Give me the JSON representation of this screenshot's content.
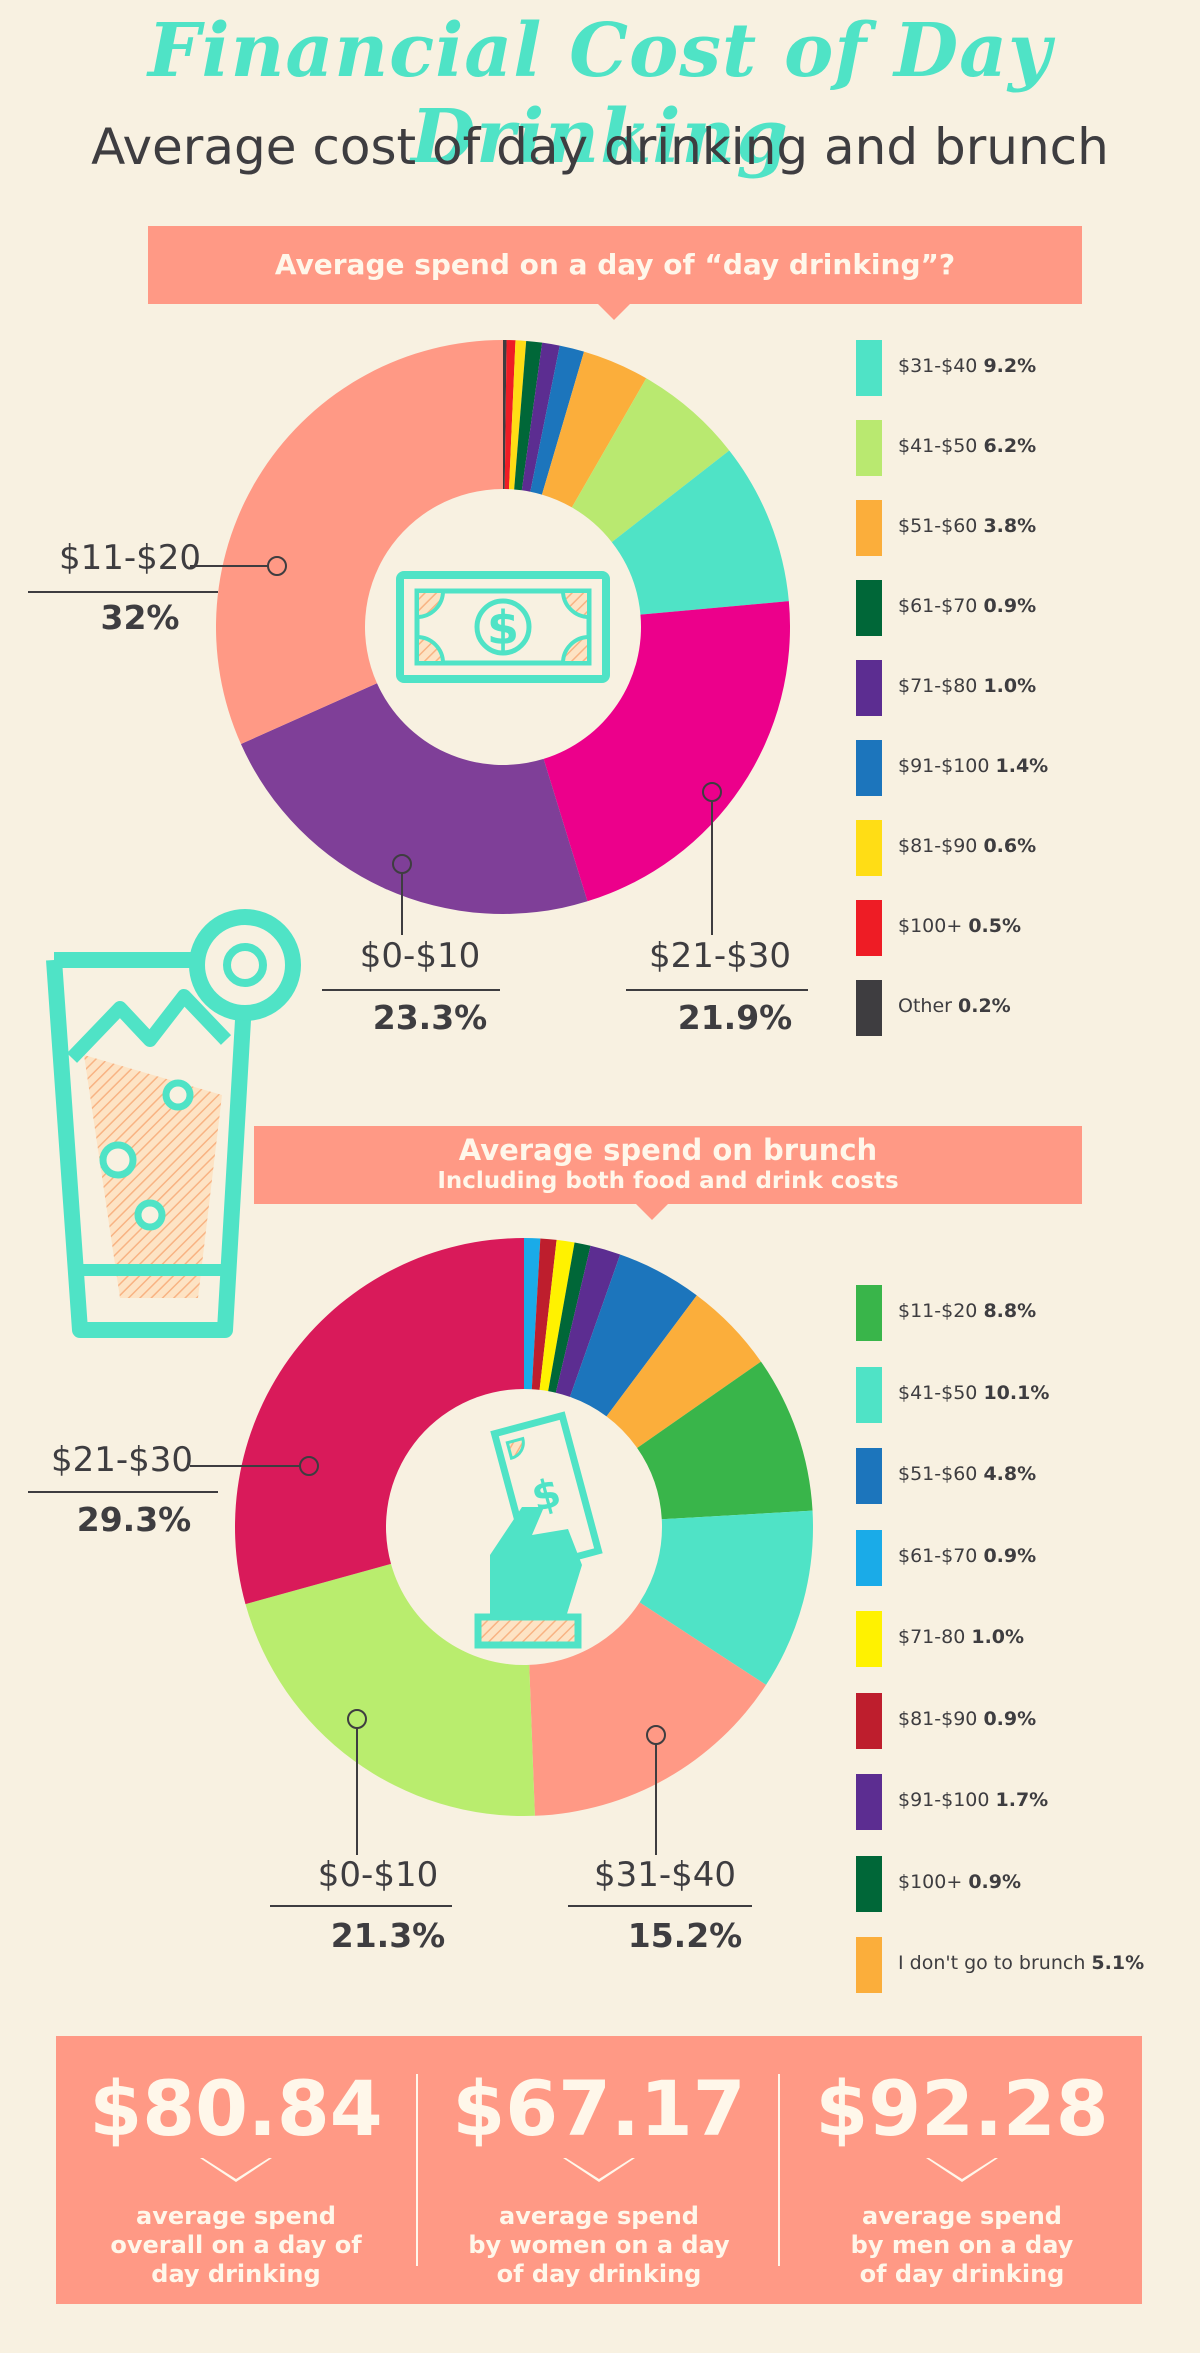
{
  "header": {
    "title": "Financial Cost of Day Drinking",
    "subtitle": "Average cost of day drinking and brunch"
  },
  "chart_data": [
    {
      "type": "pie",
      "title": "Average spend on a day of “day drinking”?",
      "subtitle": "",
      "slices": [
        {
          "label": "Other",
          "value": 0.2,
          "color": "#3e3d40"
        },
        {
          "label": "$100+",
          "value": 0.5,
          "color": "#ee1c25"
        },
        {
          "label": "$81-$90",
          "value": 0.6,
          "color": "#ffdd15"
        },
        {
          "label": "$61-$70",
          "value": 0.9,
          "color": "#006738"
        },
        {
          "label": "$71-$80",
          "value": 1.0,
          "color": "#5c2d91"
        },
        {
          "label": "$91-$100",
          "value": 1.4,
          "color": "#1c75bc"
        },
        {
          "label": "$51-$60",
          "value": 3.8,
          "color": "#fbae3b"
        },
        {
          "label": "$41-$50",
          "value": 6.2,
          "color": "#b9e970"
        },
        {
          "label": "$31-$40",
          "value": 9.2,
          "color": "#4fe3c6"
        },
        {
          "label": "$21-$30",
          "value": 21.9,
          "color": "#ec008b"
        },
        {
          "label": "$0-$10",
          "value": 23.3,
          "color": "#7f3f98"
        },
        {
          "label": "$11-$20",
          "value": 32,
          "color": "#ff9985"
        }
      ],
      "legend": [
        {
          "label": "$31-$40",
          "value": "9.2%",
          "color": "#4fe3c6"
        },
        {
          "label": "$41-$50",
          "value": "6.2%",
          "color": "#b9e970"
        },
        {
          "label": "$51-$60",
          "value": "3.8%",
          "color": "#fbae3b"
        },
        {
          "label": "$61-$70",
          "value": "0.9%",
          "color": "#006738"
        },
        {
          "label": "$71-$80",
          "value": "1.0%",
          "color": "#5c2d91"
        },
        {
          "label": "$91-$100",
          "value": "1.4%",
          "color": "#1c75bc"
        },
        {
          "label": "$81-$90",
          "value": "0.6%",
          "color": "#ffdd15"
        },
        {
          "label": "$100+",
          "value": "0.5%",
          "color": "#ee1c25"
        },
        {
          "label": "Other",
          "value": "0.2%",
          "color": "#3e3d40"
        }
      ],
      "callouts": [
        {
          "label": "$11-$20",
          "value": "32%"
        },
        {
          "label": "$0-$10",
          "value": "23.3%"
        },
        {
          "label": "$21-$30",
          "value": "21.9%"
        }
      ],
      "legend_position": "right"
    },
    {
      "type": "pie",
      "title": "Average spend on brunch",
      "subtitle": "Including both food and drink costs",
      "slices": [
        {
          "label": "$61-$70",
          "value": 0.9,
          "color": "#1aabe8"
        },
        {
          "label": "$81-$90",
          "value": 0.9,
          "color": "#be1e2d"
        },
        {
          "label": "$71-80",
          "value": 1.0,
          "color": "#fff200"
        },
        {
          "label": "$100+",
          "value": 0.9,
          "color": "#006738"
        },
        {
          "label": "$91-$100",
          "value": 1.7,
          "color": "#5c2d91"
        },
        {
          "label": "$51-$60",
          "value": 4.8,
          "color": "#1c75bc"
        },
        {
          "label": "I don't go to brunch",
          "value": 5.1,
          "color": "#fbae3b"
        },
        {
          "label": "$11-$20",
          "value": 8.8,
          "color": "#39b54a"
        },
        {
          "label": "$41-$50",
          "value": 10.1,
          "color": "#4fe3c6"
        },
        {
          "label": "$31-$40",
          "value": 15.2,
          "color": "#ff9985"
        },
        {
          "label": "$0-$10",
          "value": 21.3,
          "color": "#b9ed6e"
        },
        {
          "label": "$21-$30",
          "value": 29.3,
          "color": "#d91a5a"
        }
      ],
      "legend": [
        {
          "label": "$11-$20",
          "value": "8.8%",
          "color": "#39b54a"
        },
        {
          "label": "$41-$50",
          "value": "10.1%",
          "color": "#4fe3c6"
        },
        {
          "label": "$51-$60",
          "value": "4.8%",
          "color": "#1c75bc"
        },
        {
          "label": "$61-$70",
          "value": "0.9%",
          "color": "#1aabe8"
        },
        {
          "label": "$71-80",
          "value": "1.0%",
          "color": "#fff200"
        },
        {
          "label": "$81-$90",
          "value": "0.9%",
          "color": "#be1e2d"
        },
        {
          "label": "$91-$100",
          "value": "1.7%",
          "color": "#5c2d91"
        },
        {
          "label": "$100+",
          "value": "0.9%",
          "color": "#006738"
        },
        {
          "label": "I don't go to brunch",
          "value": "5.1%",
          "color": "#fbae3b"
        }
      ],
      "callouts": [
        {
          "label": "$21-$30",
          "value": "29.3%"
        },
        {
          "label": "$0-$10",
          "value": "21.3%"
        },
        {
          "label": "$31-$40",
          "value": "15.2%"
        }
      ],
      "legend_position": "right"
    }
  ],
  "stats": [
    {
      "value": "$80.84",
      "caption": [
        "average spend",
        "overall on a day of",
        "day drinking"
      ]
    },
    {
      "value": "$67.17",
      "caption": [
        "average spend",
        "by women on a day",
        "of day drinking"
      ]
    },
    {
      "value": "$92.28",
      "caption": [
        "average spend",
        "by men on a day",
        "of day drinking"
      ]
    }
  ],
  "icons": {
    "chart1_center": "dollar-bill-icon",
    "decoration": "cocktail-glass-icon",
    "chart2_center": "hand-holding-money-icon"
  },
  "colors": {
    "background": "#f8f1e1",
    "accent": "#4fe3c6",
    "banner": "#ff9985",
    "text": "#3e3d40"
  }
}
